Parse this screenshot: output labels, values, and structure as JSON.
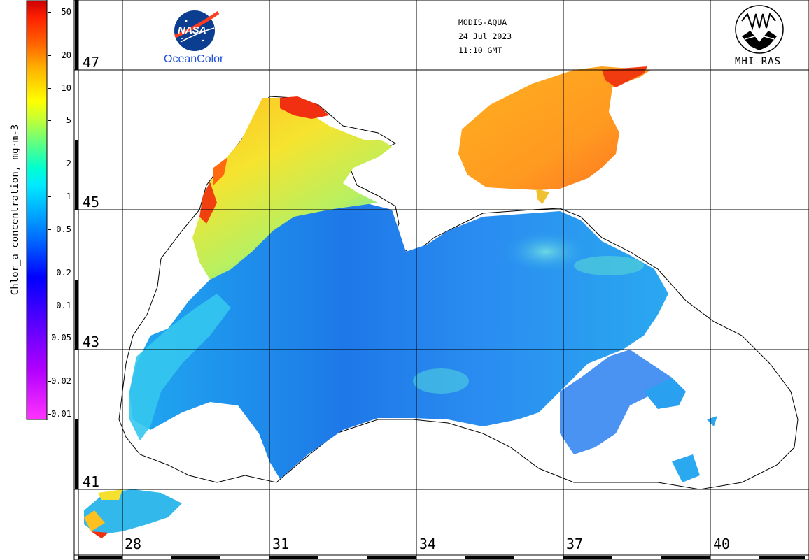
{
  "header": {
    "sensor": "MODIS-AQUA",
    "date": "24 Jul 2023",
    "time": "11:10 GMT",
    "nasa_logo_text": "NASA",
    "oceancolor_label": "OceanColor",
    "institute_label": "MHI RAS"
  },
  "colorbar": {
    "title": "Chlor_a concentration, mg·m-3",
    "tick_labels": [
      "50",
      "20",
      "10",
      "5",
      "2",
      "1",
      "0.5",
      "0.2",
      "0.1",
      "0.05",
      "0.02",
      "0.01"
    ],
    "tick_values": [
      50,
      20,
      10,
      5,
      2,
      1,
      0.5,
      0.2,
      0.1,
      0.05,
      0.02,
      0.01
    ],
    "range": [
      0.01,
      60
    ],
    "scale": "log",
    "colors": [
      "#ff33ff",
      "#8a00ff",
      "#0000ff",
      "#0070ff",
      "#00ccff",
      "#00ffe0",
      "#80ff60",
      "#ffff00",
      "#ffb000",
      "#ff4000",
      "#cc0000"
    ]
  },
  "map": {
    "latitude_labels": [
      "47",
      "45",
      "43",
      "41"
    ],
    "latitude_values": [
      47,
      45,
      43,
      41
    ],
    "longitude_labels": [
      "28",
      "31",
      "34",
      "37",
      "40"
    ],
    "longitude_values": [
      28,
      31,
      34,
      37,
      40
    ],
    "grid": true,
    "land_color": "#ffffff",
    "coastline_color": "#000000",
    "sea_color_main": "#2a8cf0",
    "shelf_color": "#ffd21e",
    "azov_color": "#ffa020"
  }
}
